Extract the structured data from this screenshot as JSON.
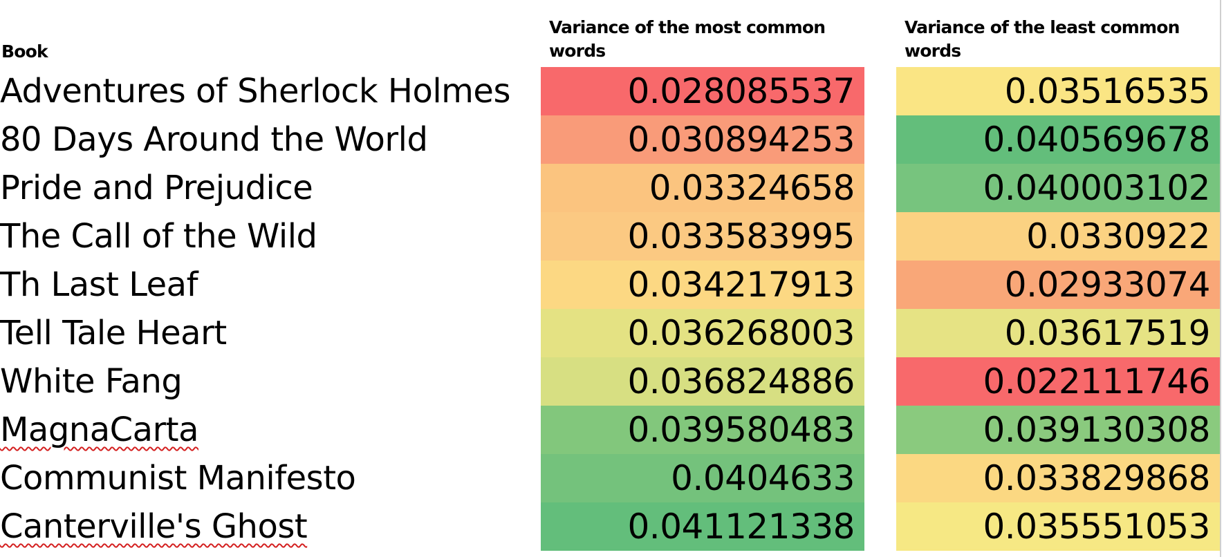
{
  "headers": {
    "book": "Book",
    "most_common": "Variance of the most common words",
    "least_common": "Variance of the least common words"
  },
  "rows": [
    {
      "book": "Adventures of Sherlock Holmes",
      "most": "0.028085537",
      "least": "0.03516535",
      "most_color": "#f8696b",
      "least_color": "#fae584",
      "spell_flag": false
    },
    {
      "book": "80 Days Around the World",
      "most": "0.030894253",
      "least": "0.040569678",
      "most_color": "#f99b79",
      "least_color": "#63be7b",
      "spell_flag": false
    },
    {
      "book": "Pride and Prejudice",
      "most": "0.03324658",
      "least": "0.040003102",
      "most_color": "#fbc47f",
      "least_color": "#77c47e",
      "spell_flag": false
    },
    {
      "book": "The Call of the Wild",
      "most": "0.033583995",
      "least": "0.0330922",
      "most_color": "#fbc982",
      "least_color": "#fbd282",
      "spell_flag": false
    },
    {
      "book": "Th Last Leaf",
      "most": "0.034217913",
      "least": "0.02933074",
      "most_color": "#fcd883",
      "least_color": "#f9a778",
      "spell_flag": false
    },
    {
      "book": "Tell Tale Heart",
      "most": "0.036268003",
      "least": "0.03617519",
      "most_color": "#e4e283",
      "least_color": "#e6e384",
      "spell_flag": false
    },
    {
      "book": "White Fang",
      "most": "0.036824886",
      "least": "0.022111746",
      "most_color": "#d7df82",
      "least_color": "#f8696b",
      "spell_flag": false
    },
    {
      "book": "MagnaCarta",
      "most": "0.039580483",
      "least": "0.039130308",
      "most_color": "#82c77c",
      "least_color": "#8aca7e",
      "spell_flag": true
    },
    {
      "book": "Communist Manifesto",
      "most": "0.0404633",
      "least": "0.033829868",
      "most_color": "#74c27c",
      "least_color": "#fbd882",
      "spell_flag": false
    },
    {
      "book": "Canterville's Ghost",
      "most": "0.041121338",
      "least": "0.035551053",
      "most_color": "#63be7b",
      "least_color": "#f6e884",
      "spell_flag": true
    }
  ]
}
